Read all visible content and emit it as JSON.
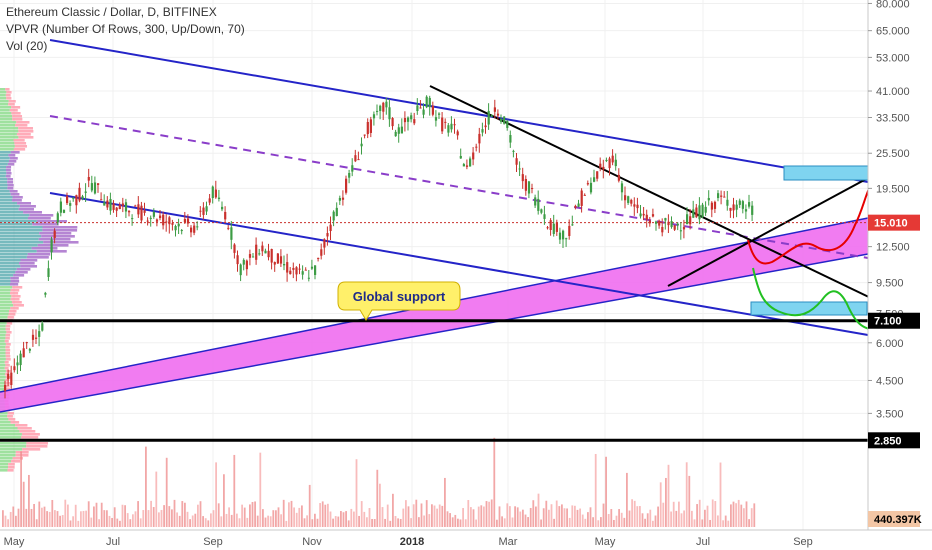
{
  "chart_data": {
    "type": "candlestick",
    "title": "Ethereum Classic / Dollar, D, BITFINEX",
    "indicators": [
      "VPVR (Number Of Rows, 300, Up/Down, 70)",
      "Vol (20)"
    ],
    "y_scale": "log",
    "y_ticks": [
      "80.000",
      "65.000",
      "53.000",
      "41.000",
      "33.500",
      "25.500",
      "19.500",
      "12.500",
      "9.500",
      "7.500",
      "6.000",
      "4.500",
      "3.500"
    ],
    "x_ticks": [
      "May",
      "Jul",
      "Sep",
      "Nov",
      "2018",
      "Mar",
      "May",
      "Jul",
      "Sep"
    ],
    "x_bold_tick": "2018",
    "ylim": [
      2.6,
      85
    ],
    "price_tag": {
      "label": "15.010",
      "value": 15.01,
      "color": "#e53935"
    },
    "level_tags": [
      {
        "label": "7.100",
        "value": 7.1,
        "color": "#000000"
      },
      {
        "label": "2.850",
        "value": 2.85,
        "color": "#000000"
      }
    ],
    "volume_tag": {
      "label": "440.397K",
      "color": "#f3c6a5"
    },
    "annotation": "Global support",
    "colors": {
      "up": "#3d9c45",
      "down": "#c9302c",
      "channel": "#2424c8",
      "band": "#f06ef0",
      "projection_red": "#e60000",
      "projection_green": "#22c022",
      "box": "#7fd4f0",
      "vp_up": "#7fd77f",
      "vp_down": "#ff8fa0",
      "vp_value": "#9c5cc4",
      "vp_value2": "#4aa3a8"
    }
  }
}
